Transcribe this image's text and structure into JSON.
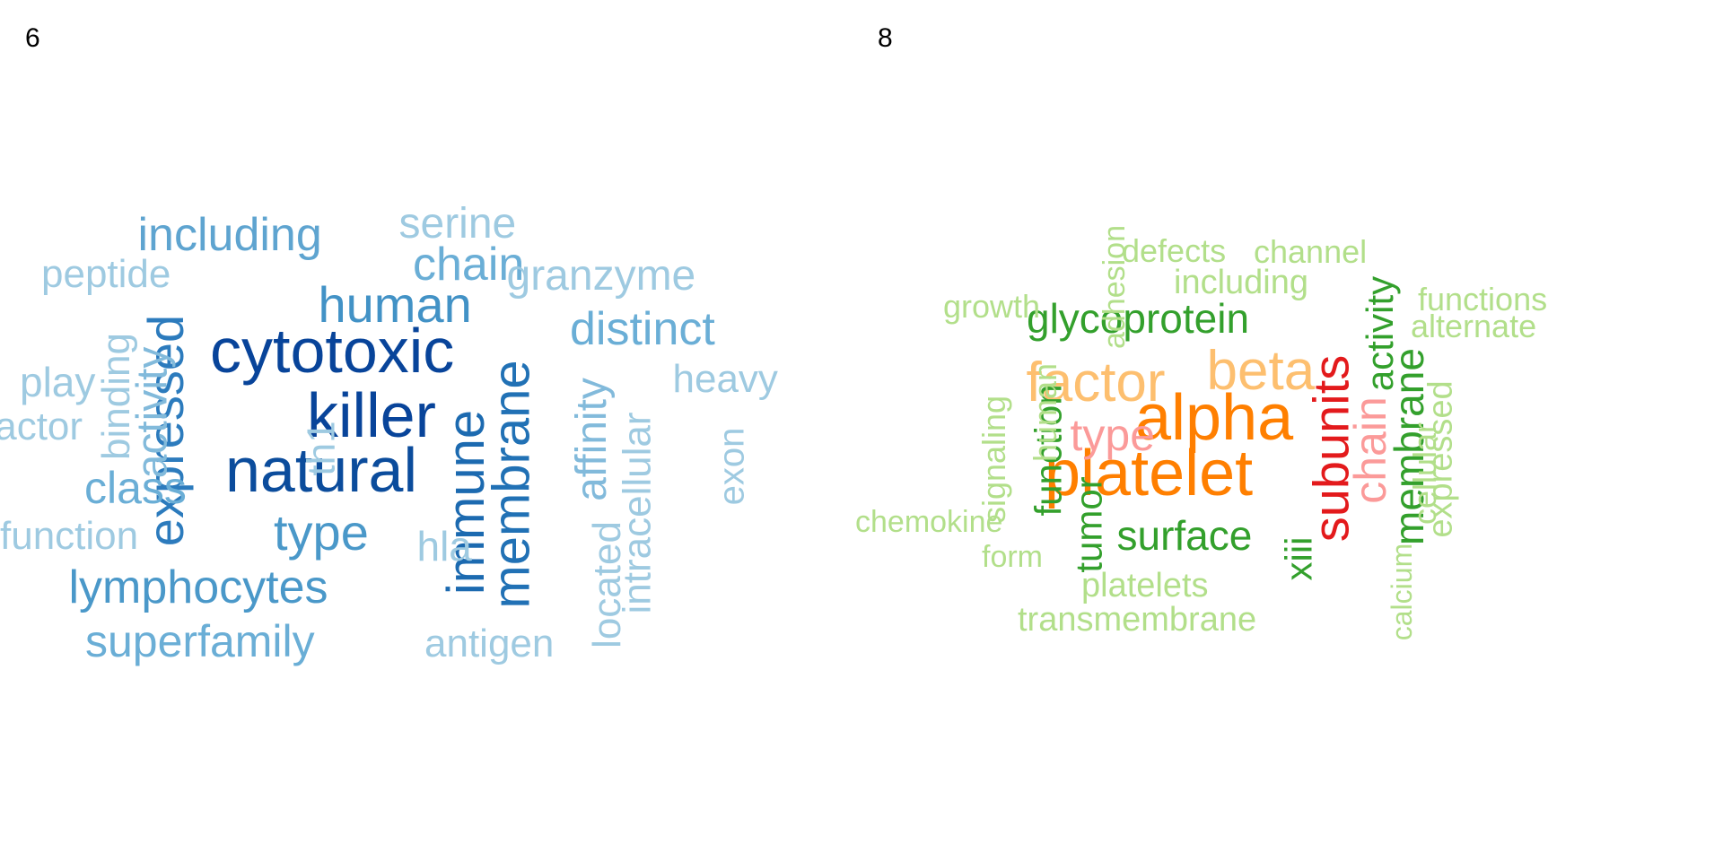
{
  "panels": [
    {
      "label": "6",
      "words": [
        {
          "text": "cytotoxic",
          "color": "#08449a",
          "size": 70
        },
        {
          "text": "natural",
          "color": "#0b4c9c",
          "size": 70
        },
        {
          "text": "killer",
          "color": "#08449a",
          "size": 70
        },
        {
          "text": "immune",
          "color": "#1c6ab0",
          "size": 58
        },
        {
          "text": "membrane",
          "color": "#2171b5",
          "size": 58
        },
        {
          "text": "expressed",
          "color": "#2c7bbd",
          "size": 56
        },
        {
          "text": "human",
          "color": "#4292c6",
          "size": 56
        },
        {
          "text": "type",
          "color": "#4a98c9",
          "size": 56
        },
        {
          "text": "lymphocytes",
          "color": "#4a98c9",
          "size": 52
        },
        {
          "text": "including",
          "color": "#5ea4d0",
          "size": 52
        },
        {
          "text": "chain",
          "color": "#6aaed6",
          "size": 52
        },
        {
          "text": "distinct",
          "color": "#6aaed6",
          "size": 52
        },
        {
          "text": "class",
          "color": "#6aaed6",
          "size": 50
        },
        {
          "text": "superfamily",
          "color": "#6aaed6",
          "size": 50
        },
        {
          "text": "activity",
          "color": "#82badb",
          "size": 48
        },
        {
          "text": "serine",
          "color": "#9ecae1",
          "size": 48
        },
        {
          "text": "granzyme",
          "color": "#9ecae1",
          "size": 48
        },
        {
          "text": "affinity",
          "color": "#82badb",
          "size": 48
        },
        {
          "text": "intracellular",
          "color": "#9ecae1",
          "size": 44
        },
        {
          "text": "located",
          "color": "#9ecae1",
          "size": 44
        },
        {
          "text": "play",
          "color": "#9ecae1",
          "size": 46
        },
        {
          "text": "binding",
          "color": "#9ecae1",
          "size": 44
        },
        {
          "text": "function",
          "color": "#9ecae1",
          "size": 44
        },
        {
          "text": "heavy",
          "color": "#9ecae1",
          "size": 44
        },
        {
          "text": "peptide",
          "color": "#9ecae1",
          "size": 44
        },
        {
          "text": "factor",
          "color": "#9ecae1",
          "size": 44
        },
        {
          "text": "th1",
          "color": "#9ecae1",
          "size": 44
        },
        {
          "text": "hla",
          "color": "#9ecae1",
          "size": 46
        },
        {
          "text": "antigen",
          "color": "#9ecae1",
          "size": 44
        },
        {
          "text": "exon",
          "color": "#9ecae1",
          "size": 40
        }
      ]
    },
    {
      "label": "8",
      "words": [
        {
          "text": "platelet",
          "color": "#ff7f00",
          "size": 72
        },
        {
          "text": "alpha",
          "color": "#ff7f00",
          "size": 72
        },
        {
          "text": "beta",
          "color": "#fdbf6f",
          "size": 62
        },
        {
          "text": "factor",
          "color": "#fdbf6f",
          "size": 62
        },
        {
          "text": "subunits",
          "color": "#e31a1c",
          "size": 56
        },
        {
          "text": "type",
          "color": "#fb9a99",
          "size": 50
        },
        {
          "text": "chain",
          "color": "#fb9a99",
          "size": 50
        },
        {
          "text": "glycoprotein",
          "color": "#33a02c",
          "size": 46
        },
        {
          "text": "surface",
          "color": "#33a02c",
          "size": 46
        },
        {
          "text": "membrane",
          "color": "#33a02c",
          "size": 46
        },
        {
          "text": "activity",
          "color": "#33a02c",
          "size": 42
        },
        {
          "text": "function",
          "color": "#33a02c",
          "size": 42
        },
        {
          "text": "tumor",
          "color": "#33a02c",
          "size": 42
        },
        {
          "text": "xiii",
          "color": "#33a02c",
          "size": 42
        },
        {
          "text": "including",
          "color": "#b2df8a",
          "size": 38
        },
        {
          "text": "expressed",
          "color": "#b2df8a",
          "size": 38
        },
        {
          "text": "transmembrane",
          "color": "#b2df8a",
          "size": 38
        },
        {
          "text": "platelets",
          "color": "#b2df8a",
          "size": 38
        },
        {
          "text": "cellular",
          "color": "#b2df8a",
          "size": 36
        },
        {
          "text": "signaling",
          "color": "#b2df8a",
          "size": 36
        },
        {
          "text": "human",
          "color": "#b2df8a",
          "size": 36
        },
        {
          "text": "defects",
          "color": "#b2df8a",
          "size": 36
        },
        {
          "text": "channel",
          "color": "#b2df8a",
          "size": 36
        },
        {
          "text": "growth",
          "color": "#b2df8a",
          "size": 36
        },
        {
          "text": "functions",
          "color": "#b2df8a",
          "size": 36
        },
        {
          "text": "alternate",
          "color": "#b2df8a",
          "size": 36
        },
        {
          "text": "adhesion",
          "color": "#b2df8a",
          "size": 34
        },
        {
          "text": "chemokine",
          "color": "#b2df8a",
          "size": 34
        },
        {
          "text": "form",
          "color": "#b2df8a",
          "size": 34
        },
        {
          "text": "calcium",
          "color": "#b2df8a",
          "size": 32
        }
      ]
    }
  ]
}
